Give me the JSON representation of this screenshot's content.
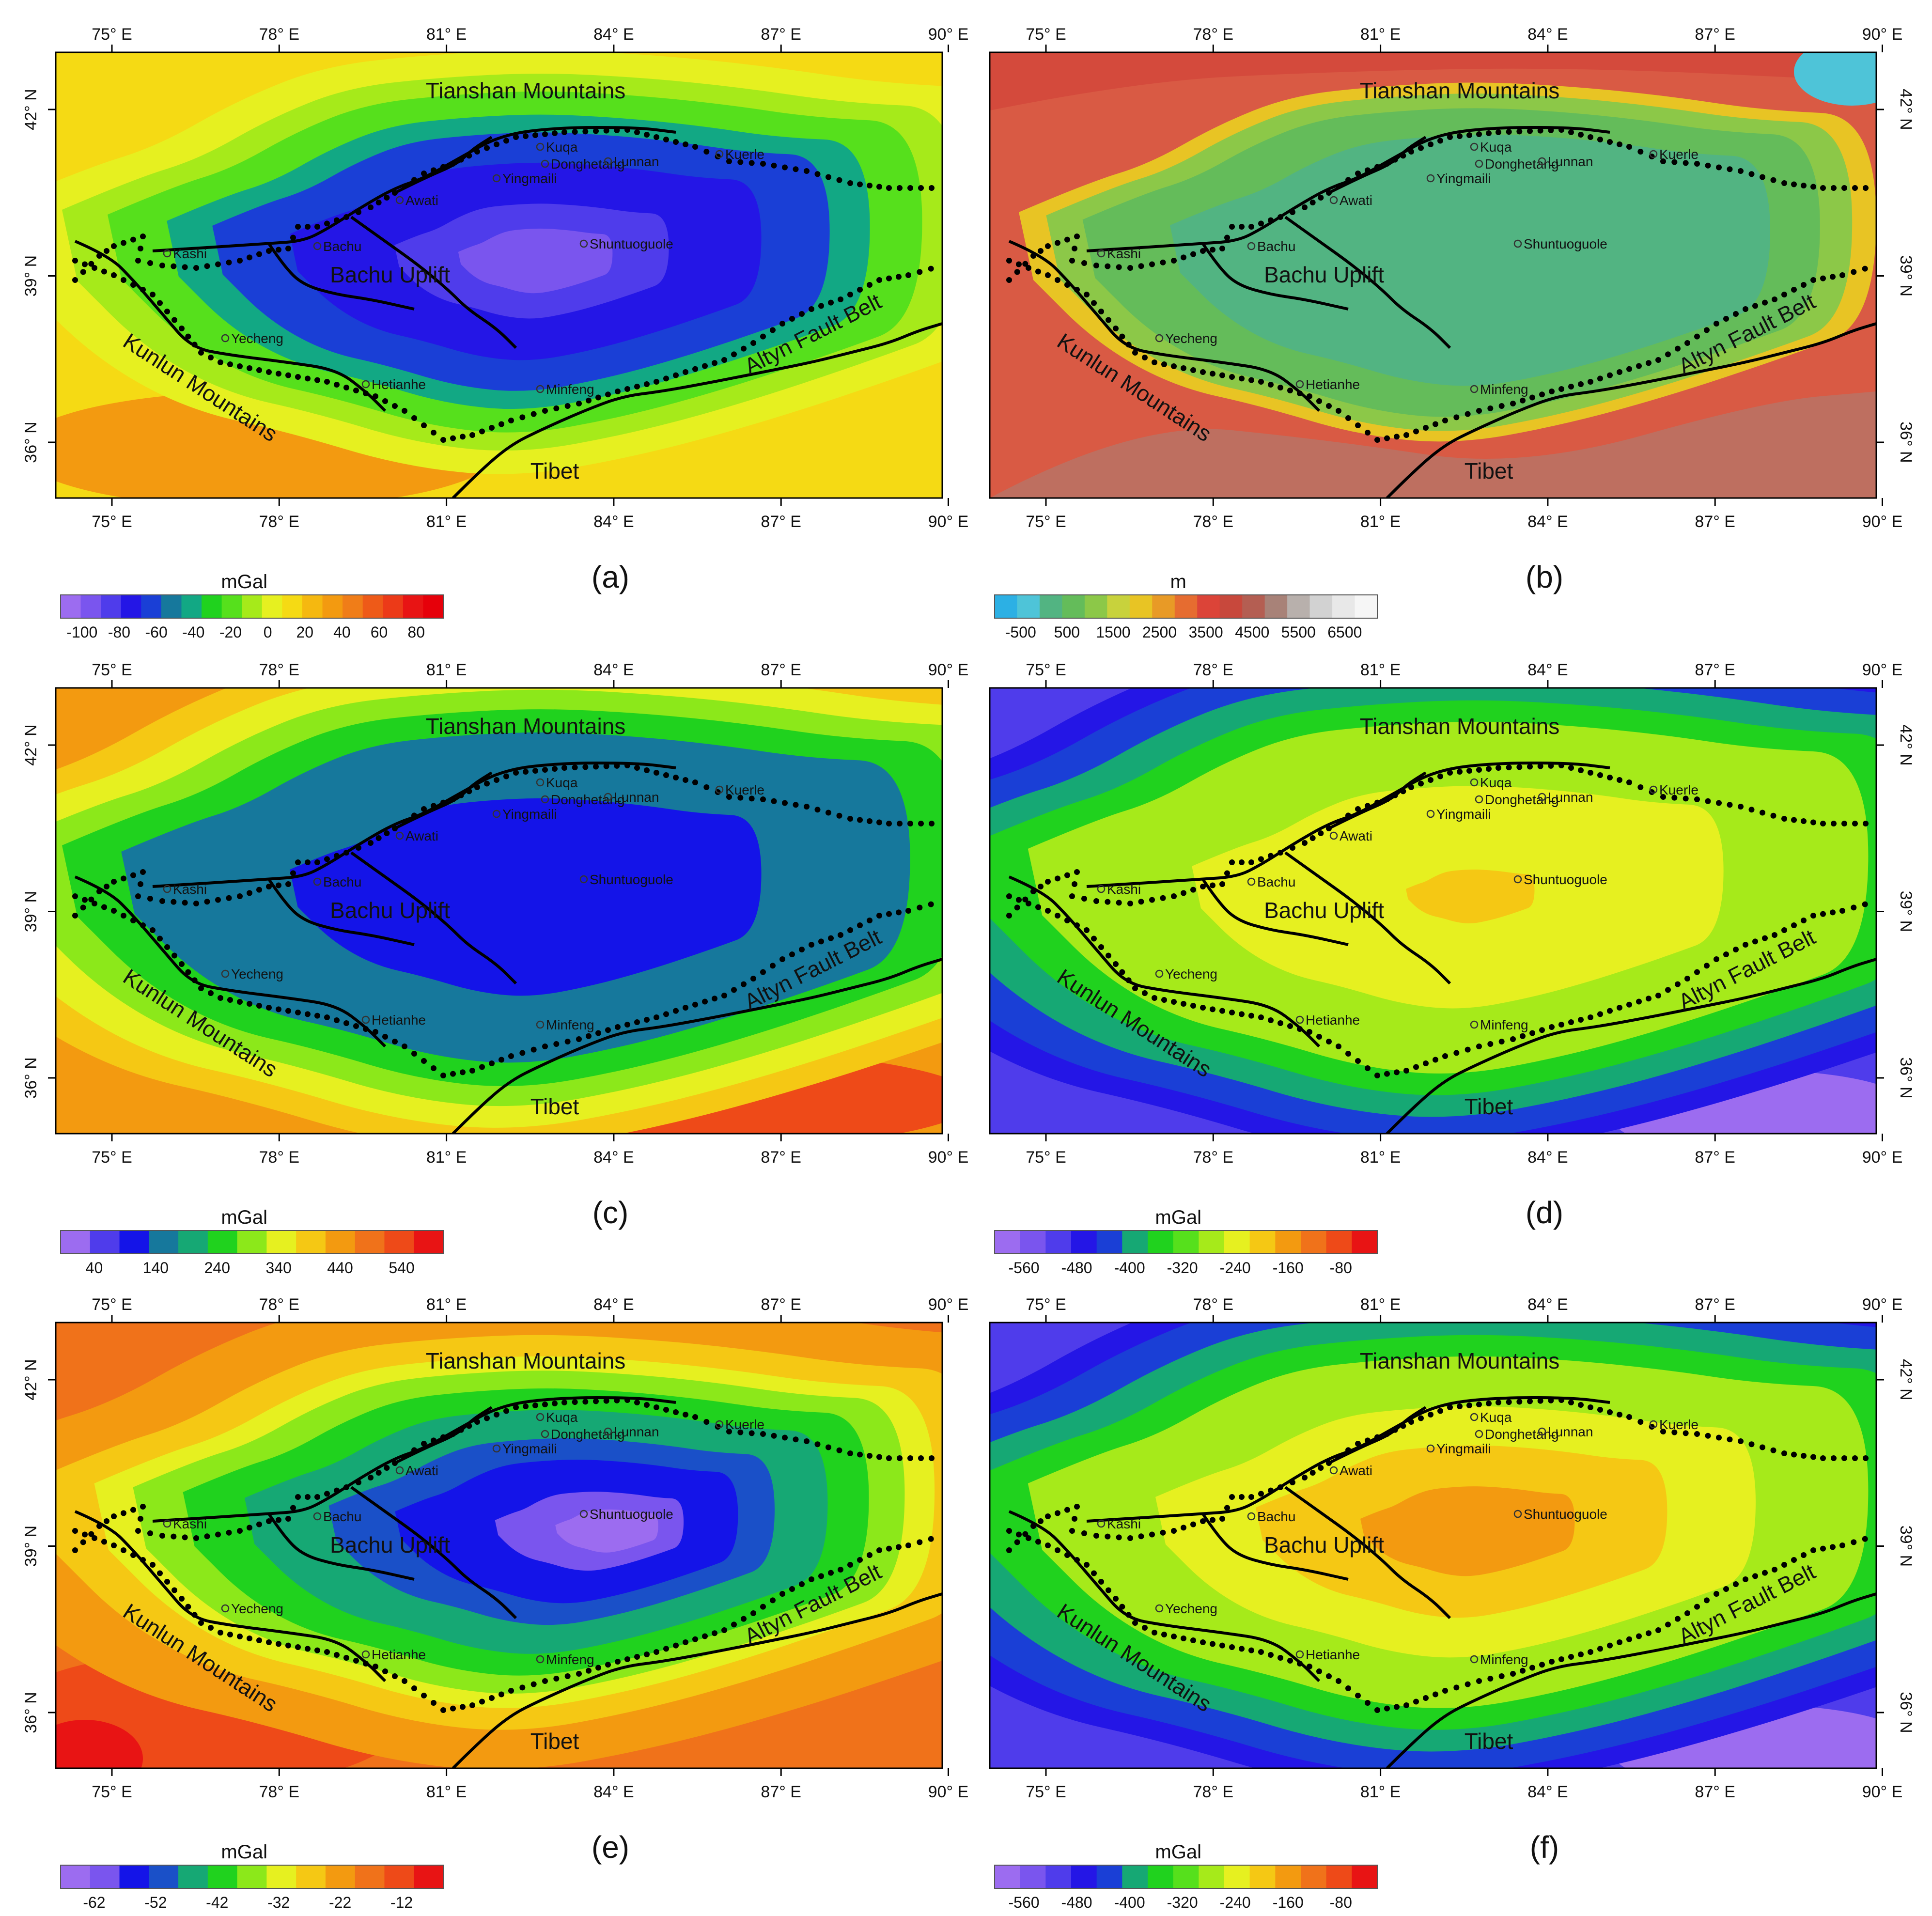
{
  "x_ticks": [
    "75° E",
    "78° E",
    "81° E",
    "84° E",
    "87° E",
    "90° E"
  ],
  "y_ticks": [
    "42° N",
    "39° N",
    "36° N"
  ],
  "regions": [
    {
      "label": "Tianshan Mountains",
      "rotate": 0
    },
    {
      "label": "Bachu Uplift",
      "rotate": 0
    },
    {
      "label": "Kunlun Mountains",
      "rotate": 33
    },
    {
      "label": "Tibet",
      "rotate": 0
    },
    {
      "label": "Altyn Fault Belt",
      "rotate": -27
    }
  ],
  "cities": [
    "Kuqa",
    "Donghetang",
    "Lunnan",
    "Kuerle",
    "Yingmaili",
    "Awati",
    "Bachu",
    "Kashi",
    "Shuntuoguole",
    "Yecheng",
    "Hetianhe",
    "Minfeng"
  ],
  "panels": [
    {
      "label": "(a)",
      "unit": "mGal",
      "ticks": [
        "-100",
        "-80",
        "-60",
        "-40",
        "-20",
        "0",
        "20",
        "40",
        "60",
        "80"
      ],
      "colors": [
        "#9C6CF0",
        "#7A55EE",
        "#4F3CEB",
        "#2416E6",
        "#1A3FD6",
        "#16789C",
        "#12A884",
        "#20D21E",
        "#56E01C",
        "#A6EA1A",
        "#E6F020",
        "#F5DA14",
        "#F5B810",
        "#F39A10",
        "#F07D18",
        "#EE5A18",
        "#EC3A18",
        "#E81414",
        "#E6000A"
      ]
    },
    {
      "label": "(b)",
      "unit": "m",
      "ticks": [
        "-500",
        "500",
        "1500",
        "2500",
        "3500",
        "4500",
        "5500",
        "6500"
      ],
      "colors": [
        "#2CB0E4",
        "#4EC4D8",
        "#52B482",
        "#64BC5A",
        "#8CC848",
        "#C8D23C",
        "#E8C424",
        "#E89A26",
        "#E66C30",
        "#DC4438",
        "#C8483C",
        "#B45E52",
        "#A88278",
        "#B8B0AC",
        "#D2D2D2",
        "#E8E8E8",
        "#F6F6F6"
      ]
    },
    {
      "label": "(c)",
      "unit": "mGal",
      "ticks": [
        "40",
        "140",
        "240",
        "340",
        "440",
        "540"
      ],
      "colors": [
        "#9C6CF0",
        "#4F3CEB",
        "#1414E8",
        "#16789C",
        "#16A874",
        "#20D21E",
        "#8CE81A",
        "#E6F020",
        "#F5C814",
        "#F39A10",
        "#F0721A",
        "#EE4A18",
        "#E81414"
      ]
    },
    {
      "label": "(d)",
      "unit": "mGal",
      "ticks": [
        "-560",
        "-480",
        "-400",
        "-320",
        "-240",
        "-160",
        "-80"
      ],
      "colors": [
        "#9C6CF0",
        "#7A55EE",
        "#4F3CEB",
        "#2416E6",
        "#1A3FD6",
        "#16A874",
        "#20D21E",
        "#56E01C",
        "#A6EA1A",
        "#E6F020",
        "#F5C814",
        "#F39A10",
        "#F0721A",
        "#EE4A18",
        "#E81414"
      ]
    },
    {
      "label": "(e)",
      "unit": "mGal",
      "ticks": [
        "-62",
        "-52",
        "-42",
        "-32",
        "-22",
        "-12"
      ],
      "colors": [
        "#9C6CF0",
        "#7A55EE",
        "#1414E8",
        "#1A50C8",
        "#16A874",
        "#20D21E",
        "#8CE81A",
        "#E6F020",
        "#F5C814",
        "#F39A10",
        "#F0721A",
        "#EE4A18",
        "#E81414"
      ]
    },
    {
      "label": "(f)",
      "unit": "mGal",
      "ticks": [
        "-560",
        "-480",
        "-400",
        "-320",
        "-240",
        "-160",
        "-80"
      ],
      "colors": [
        "#9C6CF0",
        "#7A55EE",
        "#4F3CEB",
        "#2416E6",
        "#1A3FD6",
        "#16A874",
        "#20D21E",
        "#56E01C",
        "#A6EA1A",
        "#E6F020",
        "#F5C814",
        "#F39A10",
        "#F0721A",
        "#EE4A18",
        "#E81414"
      ]
    }
  ]
}
